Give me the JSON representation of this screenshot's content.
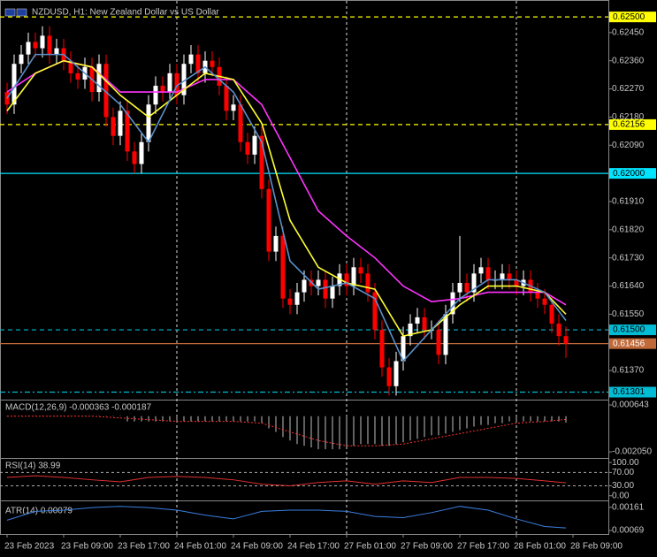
{
  "chart_data": {
    "type": "candlestick",
    "title": "NZDUSD, H1: New Zealand Dollar vs US Dollar",
    "up_color": "#ffffff",
    "down_color": "#ff0000",
    "xlim": [
      -1,
      85
    ],
    "xticks": [
      {
        "value": 0,
        "label": "23 Feb 2023"
      },
      {
        "value": 8,
        "label": "23 Feb 09:00"
      },
      {
        "value": 16,
        "label": "23 Feb 17:00"
      },
      {
        "value": 24,
        "label": "24 Feb 01:00"
      },
      {
        "value": 32,
        "label": "24 Feb 09:00"
      },
      {
        "value": 40,
        "label": "24 Feb 17:00"
      },
      {
        "value": 48,
        "label": "27 Feb 01:00"
      },
      {
        "value": 56,
        "label": "27 Feb 09:00"
      },
      {
        "value": 64,
        "label": "27 Feb 17:00"
      },
      {
        "value": 72,
        "label": "28 Feb 01:00"
      },
      {
        "value": 80,
        "label": "28 Feb 09:00"
      }
    ],
    "ylim": [
      0.61277,
      0.6254
    ],
    "yticks": [
      {
        "value": 0.6245,
        "label": "0.62450"
      },
      {
        "value": 0.6236,
        "label": "0.62360"
      },
      {
        "value": 0.6227,
        "label": "0.62270"
      },
      {
        "value": 0.6218,
        "label": "0.62180"
      },
      {
        "value": 0.6209,
        "label": "0.62090"
      },
      {
        "value": 0.6191,
        "label": "0.61910"
      },
      {
        "value": 0.6182,
        "label": "0.61820"
      },
      {
        "value": 0.6173,
        "label": "0.61730"
      },
      {
        "value": 0.6164,
        "label": "0.61640"
      },
      {
        "value": 0.6155,
        "label": "0.61550"
      },
      {
        "value": 0.6137,
        "label": "0.61370"
      }
    ],
    "levels": [
      {
        "value": 0.625,
        "label": "0.62500",
        "color": "#ffff00",
        "dash": "dashed"
      },
      {
        "value": 0.62156,
        "label": "0.62156",
        "color": "#ffff00",
        "dash": "dashed"
      },
      {
        "value": 0.62,
        "label": "0.62000",
        "color": "#00e5ff",
        "dash": "solid"
      },
      {
        "value": 0.615,
        "label": "0.61500",
        "color": "#00bcd4",
        "dash": "dashed"
      },
      {
        "value": 0.61456,
        "label": "0.61456",
        "color": "#c06a3a",
        "dash": "solid"
      },
      {
        "value": 0.61301,
        "label": "0.61301",
        "color": "#00bcd4",
        "dash": "dashdot"
      }
    ],
    "candles": [
      [
        0.6226,
        0.6229,
        0.6219,
        0.6222
      ],
      [
        0.6222,
        0.6238,
        0.6219,
        0.6235
      ],
      [
        0.6235,
        0.6241,
        0.6232,
        0.6238
      ],
      [
        0.6238,
        0.6245,
        0.6235,
        0.6242
      ],
      [
        0.6242,
        0.6245,
        0.6237,
        0.624
      ],
      [
        0.624,
        0.6247,
        0.6237,
        0.6244
      ],
      [
        0.6244,
        0.6247,
        0.6235,
        0.6238
      ],
      [
        0.6238,
        0.6243,
        0.6235,
        0.624
      ],
      [
        0.624,
        0.6243,
        0.6233,
        0.6236
      ],
      [
        0.6236,
        0.6239,
        0.6229,
        0.6232
      ],
      [
        0.6232,
        0.6235,
        0.6227,
        0.623
      ],
      [
        0.623,
        0.6237,
        0.6227,
        0.6234
      ],
      [
        0.6234,
        0.6237,
        0.6223,
        0.6226
      ],
      [
        0.6226,
        0.6238,
        0.6223,
        0.6235
      ],
      [
        0.6235,
        0.6238,
        0.6215,
        0.6218
      ],
      [
        0.6218,
        0.6221,
        0.6209,
        0.6212
      ],
      [
        0.6212,
        0.6223,
        0.6209,
        0.622
      ],
      [
        0.622,
        0.6223,
        0.6204,
        0.6207
      ],
      [
        0.6207,
        0.621,
        0.62,
        0.6203
      ],
      [
        0.6203,
        0.6213,
        0.62,
        0.621
      ],
      [
        0.621,
        0.6225,
        0.6207,
        0.6222
      ],
      [
        0.6222,
        0.6231,
        0.6219,
        0.6228
      ],
      [
        0.6228,
        0.6231,
        0.6223,
        0.6226
      ],
      [
        0.6226,
        0.6235,
        0.6223,
        0.6232
      ],
      [
        0.6232,
        0.6235,
        0.6222,
        0.6225
      ],
      [
        0.6225,
        0.6238,
        0.6222,
        0.6235
      ],
      [
        0.6235,
        0.6241,
        0.6232,
        0.6238
      ],
      [
        0.6238,
        0.6241,
        0.6229,
        0.6232
      ],
      [
        0.6232,
        0.6239,
        0.6229,
        0.6236
      ],
      [
        0.6236,
        0.6239,
        0.6231,
        0.6234
      ],
      [
        0.6234,
        0.6237,
        0.6225,
        0.6228
      ],
      [
        0.6228,
        0.6231,
        0.6217,
        0.622
      ],
      [
        0.622,
        0.6225,
        0.6217,
        0.6222
      ],
      [
        0.6222,
        0.6225,
        0.6207,
        0.621
      ],
      [
        0.621,
        0.6213,
        0.6203,
        0.6206
      ],
      [
        0.6206,
        0.6215,
        0.6203,
        0.6212
      ],
      [
        0.6212,
        0.6215,
        0.6192,
        0.6195
      ],
      [
        0.6195,
        0.6198,
        0.6172,
        0.6175
      ],
      [
        0.6175,
        0.6183,
        0.6172,
        0.618
      ],
      [
        0.618,
        0.6183,
        0.6157,
        0.616
      ],
      [
        0.616,
        0.6163,
        0.6155,
        0.6158
      ],
      [
        0.6158,
        0.6165,
        0.6155,
        0.6162
      ],
      [
        0.6162,
        0.6169,
        0.6159,
        0.6166
      ],
      [
        0.6166,
        0.6169,
        0.6161,
        0.6164
      ],
      [
        0.6164,
        0.6169,
        0.6161,
        0.6166
      ],
      [
        0.6166,
        0.6169,
        0.6157,
        0.616
      ],
      [
        0.616,
        0.6167,
        0.6157,
        0.6164
      ],
      [
        0.6164,
        0.6171,
        0.6161,
        0.6168
      ],
      [
        0.6168,
        0.6171,
        0.6161,
        0.6164
      ],
      [
        0.6164,
        0.6173,
        0.6161,
        0.617
      ],
      [
        0.617,
        0.6173,
        0.6165,
        0.6168
      ],
      [
        0.6168,
        0.6171,
        0.6159,
        0.6162
      ],
      [
        0.6162,
        0.6165,
        0.6147,
        0.615
      ],
      [
        0.615,
        0.6153,
        0.6135,
        0.6138
      ],
      [
        0.6138,
        0.6141,
        0.6129,
        0.6132
      ],
      [
        0.6132,
        0.6143,
        0.6129,
        0.614
      ],
      [
        0.614,
        0.6151,
        0.6137,
        0.6148
      ],
      [
        0.6148,
        0.6155,
        0.6145,
        0.6152
      ],
      [
        0.6152,
        0.6157,
        0.6149,
        0.6154
      ],
      [
        0.6154,
        0.6157,
        0.6147,
        0.615
      ],
      [
        0.615,
        0.6153,
        0.6147,
        0.615
      ],
      [
        0.615,
        0.6153,
        0.6139,
        0.6142
      ],
      [
        0.6142,
        0.6158,
        0.6139,
        0.6155
      ],
      [
        0.6155,
        0.6165,
        0.6152,
        0.6162
      ],
      [
        0.6162,
        0.618,
        0.6159,
        0.6165
      ],
      [
        0.6165,
        0.6168,
        0.6159,
        0.6162
      ],
      [
        0.6162,
        0.6171,
        0.6159,
        0.6168
      ],
      [
        0.6168,
        0.6173,
        0.6165,
        0.617
      ],
      [
        0.617,
        0.6173,
        0.6163,
        0.6166
      ],
      [
        0.6166,
        0.6169,
        0.6163,
        0.6166
      ],
      [
        0.6166,
        0.6171,
        0.6163,
        0.6168
      ],
      [
        0.6168,
        0.6171,
        0.6163,
        0.6166
      ],
      [
        0.6166,
        0.6169,
        0.6161,
        0.6164
      ],
      [
        0.6164,
        0.6169,
        0.6161,
        0.6166
      ],
      [
        0.6166,
        0.6169,
        0.6159,
        0.6162
      ],
      [
        0.6162,
        0.6165,
        0.6157,
        0.616
      ],
      [
        0.616,
        0.6163,
        0.6155,
        0.6158
      ],
      [
        0.6158,
        0.6161,
        0.6149,
        0.6152
      ],
      [
        0.6152,
        0.6155,
        0.6145,
        0.6148
      ],
      [
        0.6148,
        0.6151,
        0.6141,
        0.61456
      ]
    ],
    "line_x": [
      0,
      4,
      8,
      12,
      16,
      20,
      24,
      28,
      32,
      36,
      40,
      44,
      48,
      52,
      56,
      60,
      64,
      68,
      72,
      76,
      79
    ],
    "series": [
      {
        "color": "#ff33ff",
        "values": [
          0.6226,
          0.6232,
          0.6236,
          0.6234,
          0.6226,
          0.6226,
          0.6226,
          0.623,
          0.623,
          0.6222,
          0.6205,
          0.6188,
          0.618,
          0.6173,
          0.6164,
          0.6159,
          0.616,
          0.6162,
          0.6162,
          0.6162,
          0.6158
        ]
      },
      {
        "color": "#ffff33",
        "values": [
          0.622,
          0.6232,
          0.6236,
          0.6234,
          0.6225,
          0.6218,
          0.6225,
          0.6232,
          0.623,
          0.6216,
          0.6185,
          0.617,
          0.6165,
          0.6163,
          0.6148,
          0.615,
          0.6158,
          0.6164,
          0.6164,
          0.6162,
          0.6155
        ]
      },
      {
        "color": "#5b8fc9",
        "values": [
          0.6224,
          0.6238,
          0.6238,
          0.623,
          0.6222,
          0.621,
          0.6228,
          0.6234,
          0.6226,
          0.621,
          0.6172,
          0.6163,
          0.6165,
          0.616,
          0.614,
          0.615,
          0.616,
          0.6166,
          0.6166,
          0.6162,
          0.6153
        ]
      }
    ],
    "macd": {
      "label": "MACD(12,26,9) -0.000363 -0.000187",
      "ylim": [
        -0.0024,
        0.0009
      ],
      "yticks": [
        {
          "value": 0.000643,
          "label": "0.000643"
        },
        {
          "value": -0.00205,
          "label": "-0.002050"
        }
      ],
      "histogram_color": "#c0c0c0",
      "signal_color": "#ff3030",
      "histogram": [
        2e-05,
        2e-05,
        2e-05,
        2e-05,
        2e-05,
        2e-05,
        2e-05,
        2e-05,
        2e-05,
        2e-05,
        2e-05,
        2e-05,
        2e-05,
        2e-05,
        2e-05,
        2e-05,
        2e-05,
        -0.0003,
        -0.0003,
        -0.0003,
        -0.0003,
        -0.0003,
        -0.0003,
        -0.0003,
        -0.0003,
        -0.0003,
        -0.0003,
        -0.0003,
        -0.0003,
        -0.0003,
        -0.0003,
        -0.0003,
        -0.0003,
        -0.0003,
        -0.0003,
        -0.0003,
        -0.0004,
        -0.0007,
        -0.0009,
        -0.0012,
        -0.0014,
        -0.0016,
        -0.0017,
        -0.0018,
        -0.0019,
        -0.0019,
        -0.0019,
        -0.0019,
        -0.0018,
        -0.0017,
        -0.0016,
        -0.0016,
        -0.0016,
        -0.0017,
        -0.0017,
        -0.0016,
        -0.0015,
        -0.0014,
        -0.0013,
        -0.0012,
        -0.0011,
        -0.0011,
        -0.001,
        -0.0009,
        -0.0008,
        -0.0007,
        -0.0006,
        -0.0005,
        -0.0005,
        -0.0004,
        -0.0004,
        -0.0003,
        -0.0003,
        -0.0003,
        -0.0003,
        -0.0003,
        -0.0003,
        -0.0003,
        -0.0003,
        -0.000363
      ],
      "signal": [
        0,
        0,
        0,
        0,
        -0.0001,
        -0.0002,
        -0.0003,
        -0.0003,
        -0.0003,
        -0.0004,
        -0.0009,
        -0.0014,
        -0.0017,
        -0.0017,
        -0.0016,
        -0.0013,
        -0.001,
        -0.0007,
        -0.0004,
        -0.0003,
        -0.000187
      ]
    },
    "rsi": {
      "label": "RSI(14) 38.99",
      "ylim": [
        -14,
        111
      ],
      "color": "#e03030",
      "yticks": [
        {
          "value": 100,
          "label": "100.00"
        },
        {
          "value": 70,
          "label": "70.00"
        },
        {
          "value": 30,
          "label": "30.00"
        },
        {
          "value": 0,
          "label": "0.00"
        }
      ],
      "values": [
        55,
        60,
        55,
        48,
        42,
        55,
        58,
        55,
        48,
        35,
        30,
        40,
        45,
        35,
        45,
        40,
        55,
        55,
        52,
        45,
        38.99
      ]
    },
    "atr": {
      "label": "ATR(14) 0.00079",
      "ylim": [
        0.00055,
        0.00185
      ],
      "color": "#3a7fe0",
      "yticks": [
        {
          "value": 0.00161,
          "label": "0.00161"
        },
        {
          "value": 0.00069,
          "label": "0.00069"
        }
      ],
      "values": [
        0.0011,
        0.00145,
        0.0015,
        0.0016,
        0.00165,
        0.0016,
        0.0015,
        0.0013,
        0.00115,
        0.00145,
        0.0015,
        0.0015,
        0.00145,
        0.00125,
        0.0012,
        0.0014,
        0.00165,
        0.0015,
        0.00115,
        0.00085,
        0.00079
      ]
    }
  }
}
